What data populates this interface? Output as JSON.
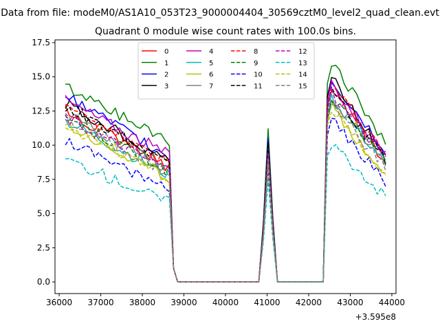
{
  "chart_data": {
    "type": "line",
    "suptitle": "Data from file: modeM0/AS1A10_053T23_9000004404_30569cztM0_level2_quad_clean.evt",
    "title": "Quadrant 0 module wise count rates with 100.0s bins.",
    "xlabel": "",
    "ylabel": "",
    "x_offset_label": "+3.595e8",
    "xlim": [
      35900,
      44100
    ],
    "ylim": [
      -0.85,
      17.7
    ],
    "x_ticks": [
      36000,
      37000,
      38000,
      39000,
      40000,
      41000,
      42000,
      43000,
      44000
    ],
    "y_ticks": [
      0.0,
      2.5,
      5.0,
      7.5,
      10.0,
      12.5,
      15.0,
      17.5
    ],
    "x_tick_labels": [
      "36000",
      "37000",
      "38000",
      "39000",
      "40000",
      "41000",
      "42000",
      "43000",
      "44000"
    ],
    "y_tick_labels": [
      "0.0",
      "2.5",
      "5.0",
      "7.5",
      "10.0",
      "12.5",
      "15.0",
      "17.5"
    ],
    "legend_position": "upper center",
    "segments": [
      [
        36150,
        38650
      ],
      [
        40900,
        41150
      ],
      [
        42450,
        43850
      ]
    ],
    "segment_profiles": [
      "decline",
      "peak",
      "decline"
    ],
    "shape": [
      0.02,
      0.33,
      0.82,
      0.35,
      0.01
    ],
    "series": [
      {
        "name": "0",
        "color": "#ff0000",
        "style": "solid",
        "levels": [
          [
            12.5,
            8.4
          ],
          [
            9.8
          ],
          [
            14.8,
            8.8
          ]
        ]
      },
      {
        "name": "1",
        "color": "#008000",
        "style": "solid",
        "levels": [
          [
            14.3,
            10.4
          ],
          [
            11.2
          ],
          [
            16.5,
            10.2
          ]
        ]
      },
      {
        "name": "2",
        "color": "#0000ff",
        "style": "solid",
        "levels": [
          [
            13.6,
            9.1
          ],
          [
            10.5
          ],
          [
            15.1,
            9.6
          ]
        ]
      },
      {
        "name": "3",
        "color": "#000000",
        "style": "solid",
        "levels": [
          [
            13.0,
            8.9
          ],
          [
            10.2
          ],
          [
            15.4,
            9.0
          ]
        ]
      },
      {
        "name": "4",
        "color": "#bf00bf",
        "style": "solid",
        "levels": [
          [
            13.3,
            9.3
          ],
          [
            9.9
          ],
          [
            15.0,
            9.2
          ]
        ]
      },
      {
        "name": "5",
        "color": "#00bfbf",
        "style": "solid",
        "levels": [
          [
            11.8,
            7.8
          ],
          [
            9.2
          ],
          [
            13.8,
            8.7
          ]
        ]
      },
      {
        "name": "6",
        "color": "#bfbf00",
        "style": "solid",
        "levels": [
          [
            11.6,
            7.5
          ],
          [
            8.8
          ],
          [
            13.2,
            7.8
          ]
        ]
      },
      {
        "name": "7",
        "color": "#808080",
        "style": "solid",
        "levels": [
          [
            12.2,
            8.3
          ],
          [
            9.5
          ],
          [
            14.0,
            8.5
          ]
        ]
      },
      {
        "name": "8",
        "color": "#ff0000",
        "style": "dashed",
        "levels": [
          [
            12.7,
            8.6
          ],
          [
            9.6
          ],
          [
            14.6,
            9.4
          ]
        ]
      },
      {
        "name": "9",
        "color": "#008000",
        "style": "dashed",
        "levels": [
          [
            12.1,
            8.1
          ],
          [
            9.0
          ],
          [
            13.6,
            9.0
          ]
        ]
      },
      {
        "name": "10",
        "color": "#0000ff",
        "style": "dashed",
        "levels": [
          [
            10.2,
            6.9
          ],
          [
            8.3
          ],
          [
            12.2,
            7.4
          ]
        ]
      },
      {
        "name": "11",
        "color": "#000000",
        "style": "dashed",
        "levels": [
          [
            12.9,
            8.8
          ],
          [
            9.9
          ],
          [
            14.4,
            8.8
          ]
        ]
      },
      {
        "name": "12",
        "color": "#bf00bf",
        "style": "dashed",
        "levels": [
          [
            12.0,
            8.2
          ],
          [
            9.4
          ],
          [
            14.2,
            9.1
          ]
        ]
      },
      {
        "name": "13",
        "color": "#00bfbf",
        "style": "dashed",
        "levels": [
          [
            9.0,
            5.8
          ],
          [
            7.5
          ],
          [
            10.5,
            6.2
          ]
        ]
      },
      {
        "name": "14",
        "color": "#bfbf00",
        "style": "dashed",
        "levels": [
          [
            11.5,
            7.6
          ],
          [
            8.6
          ],
          [
            13.0,
            7.9
          ]
        ]
      },
      {
        "name": "15",
        "color": "#808080",
        "style": "dashed",
        "levels": [
          [
            11.9,
            7.9
          ],
          [
            9.0
          ],
          [
            13.4,
            8.3
          ]
        ]
      }
    ]
  }
}
